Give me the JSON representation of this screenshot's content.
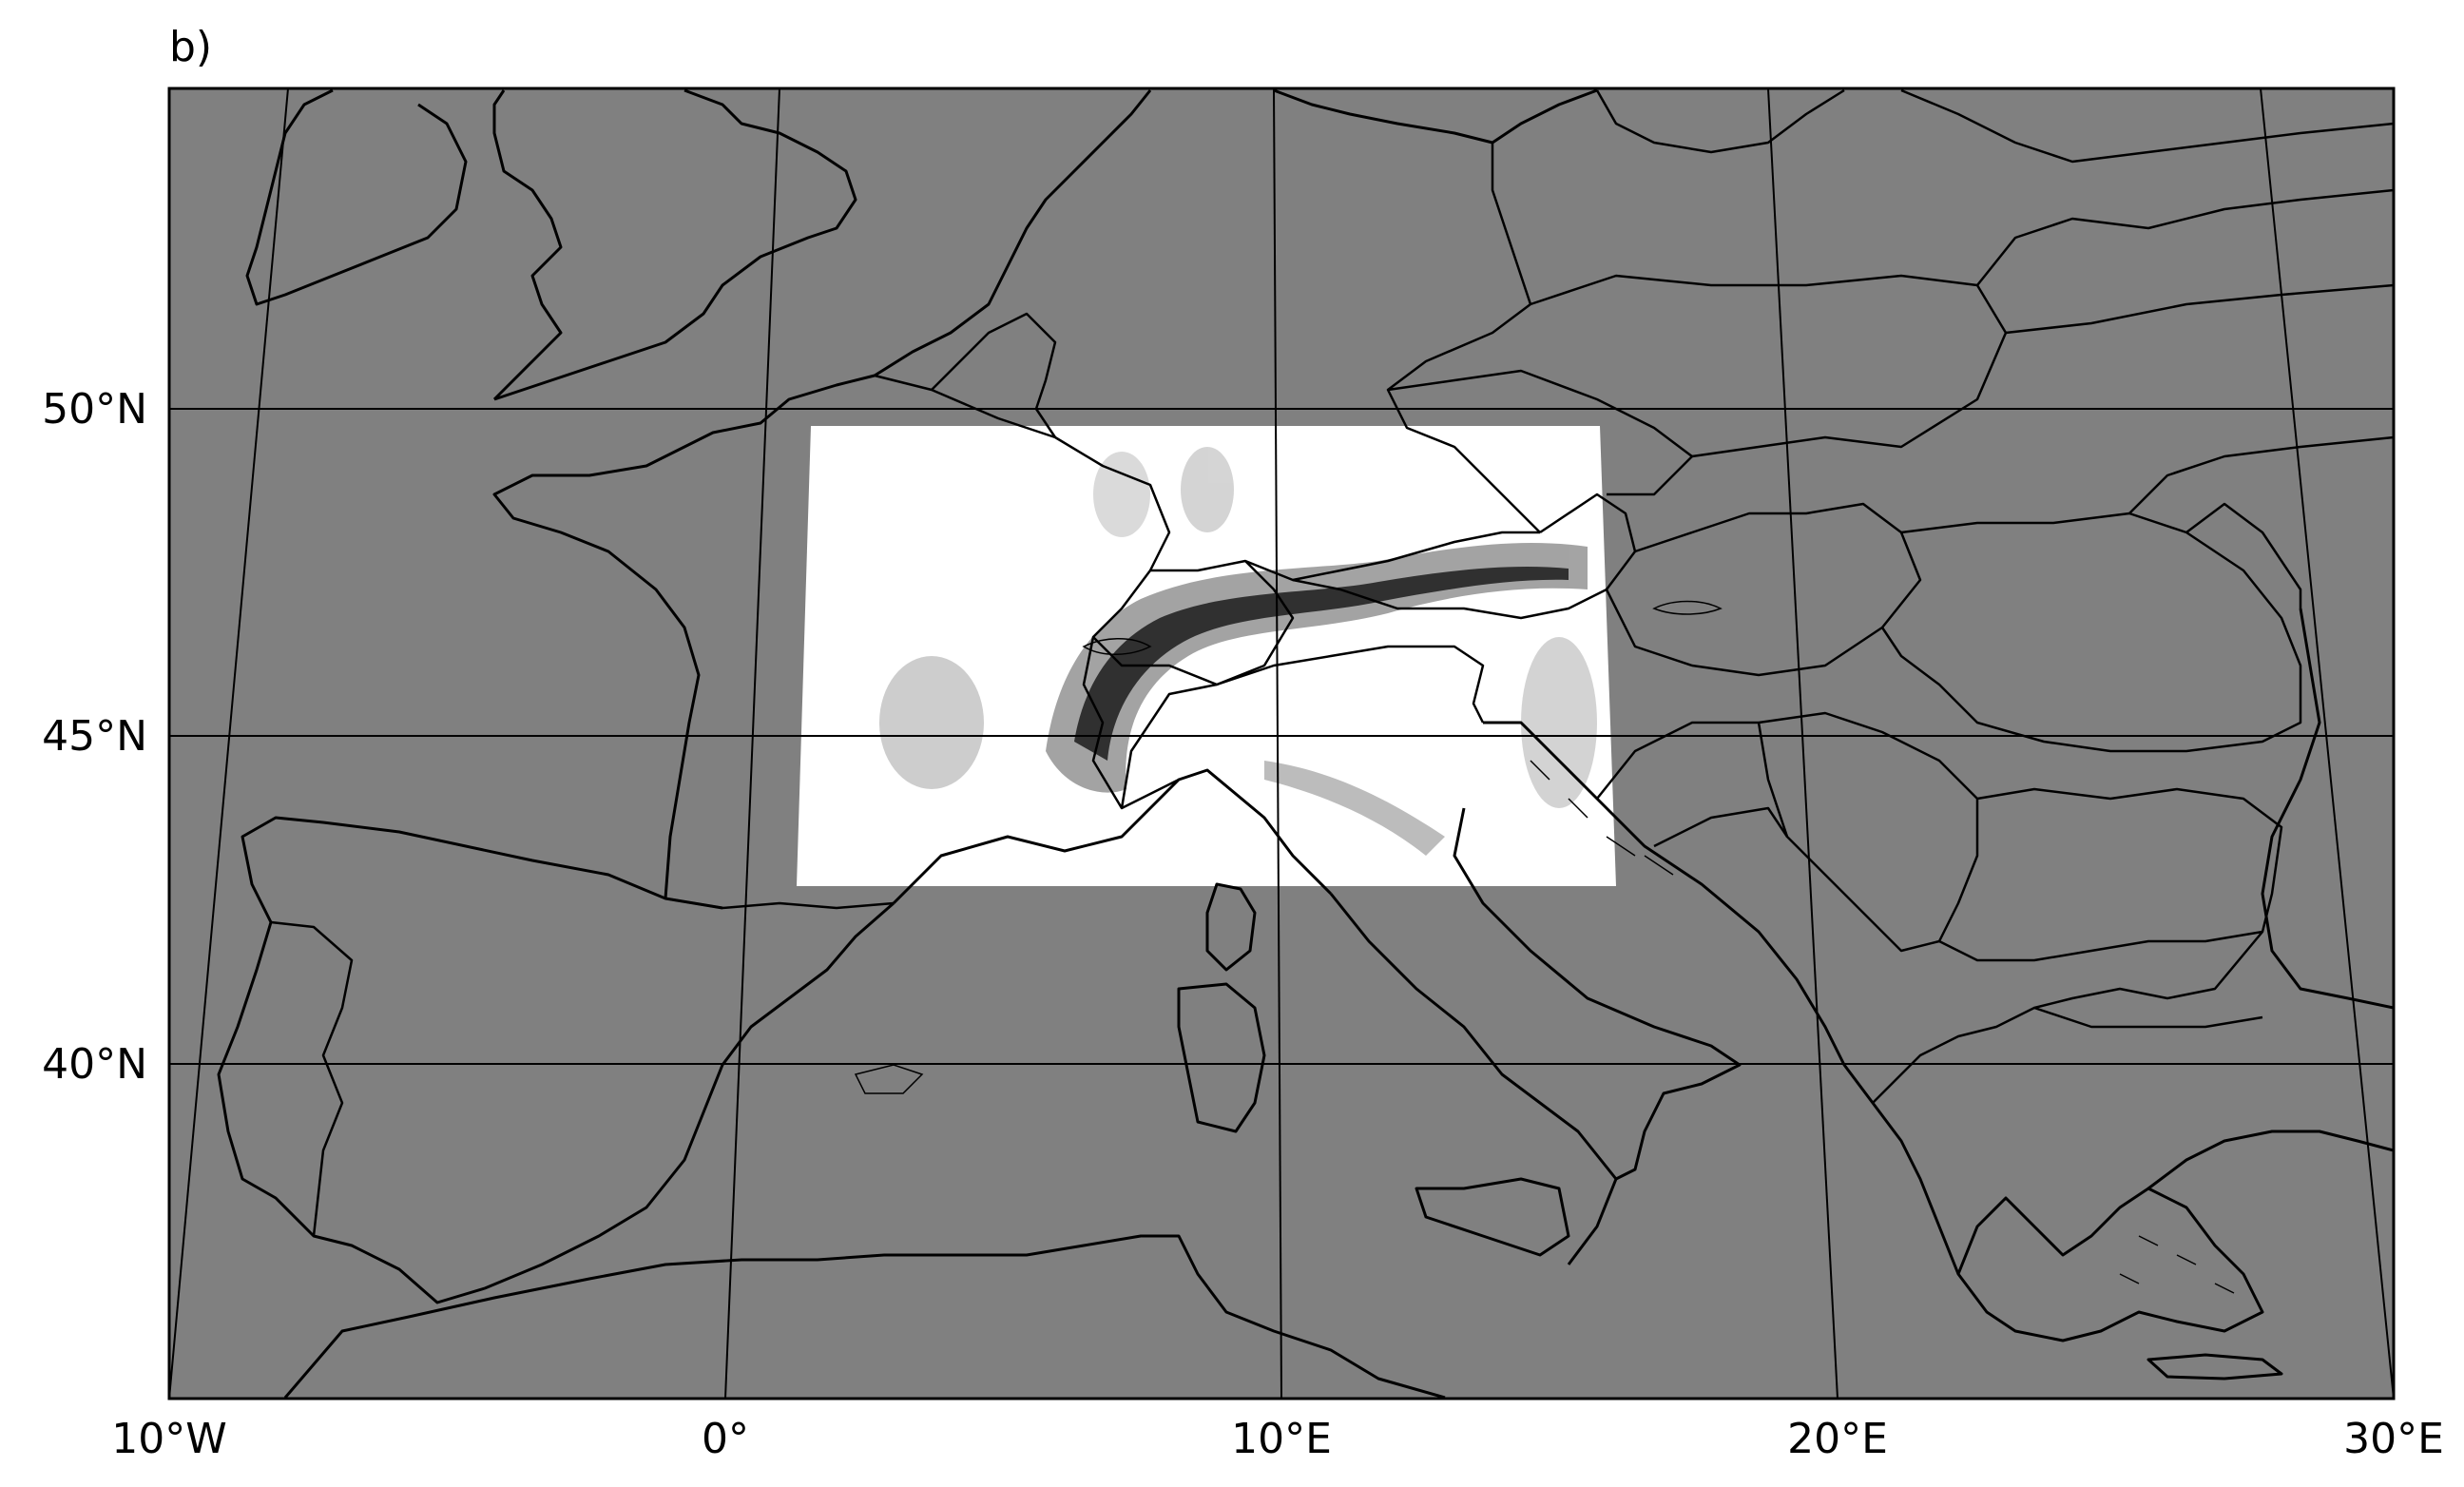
{
  "panel_label": "b)",
  "colors": {
    "ocean_land": "#808080",
    "coastline": "#000000",
    "gridline": "#000000",
    "domain_fill": "#ffffff",
    "relief_dark": "#1a1a1a"
  },
  "map": {
    "projection": "conic",
    "lon_range": [
      -10,
      30
    ],
    "lat_range": [
      35,
      54
    ],
    "lat_ticks": [
      {
        "value": 50,
        "label": "50°N"
      },
      {
        "value": 45,
        "label": "45°N"
      },
      {
        "value": 40,
        "label": "40°N"
      }
    ],
    "lon_ticks": [
      {
        "value": -10,
        "label": "10°W"
      },
      {
        "value": 0,
        "label": "0°"
      },
      {
        "value": 10,
        "label": "10°E"
      },
      {
        "value": 20,
        "label": "20°E"
      },
      {
        "value": 30,
        "label": "30°E"
      }
    ],
    "topography_domain": {
      "lon_range": [
        1.5,
        16
      ],
      "lat_range": [
        42.7,
        49.7
      ]
    }
  }
}
